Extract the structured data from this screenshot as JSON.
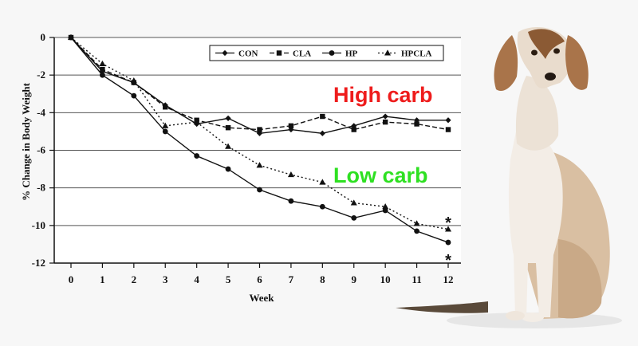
{
  "chart_data": {
    "type": "line",
    "title": "",
    "xlabel": "Week",
    "ylabel": "% Change in Body Weight",
    "x": [
      0,
      1,
      2,
      3,
      4,
      5,
      6,
      7,
      8,
      9,
      10,
      11,
      12
    ],
    "xlim": [
      0,
      12
    ],
    "ylim": [
      -12,
      0
    ],
    "yticks": [
      0,
      -2,
      -4,
      -6,
      -8,
      -10,
      -12
    ],
    "grid": "horizontal",
    "legend_position": "top-right",
    "series": [
      {
        "name": "CON",
        "marker": "diamond",
        "line": "solid",
        "values": [
          0,
          -1.8,
          -2.4,
          -3.6,
          -4.6,
          -4.3,
          -5.1,
          -4.9,
          -5.1,
          -4.7,
          -4.2,
          -4.4,
          -4.4
        ]
      },
      {
        "name": "CLA",
        "marker": "square",
        "line": "dashed",
        "values": [
          0,
          -1.7,
          -2.4,
          -3.7,
          -4.4,
          -4.8,
          -4.9,
          -4.7,
          -4.2,
          -4.9,
          -4.5,
          -4.6,
          -4.9
        ]
      },
      {
        "name": "HP",
        "marker": "circle",
        "line": "solid",
        "values": [
          0,
          -2.0,
          -3.1,
          -5.0,
          -6.3,
          -7.0,
          -8.1,
          -8.7,
          -9.0,
          -9.6,
          -9.2,
          -10.3,
          -10.9
        ]
      },
      {
        "name": "HPCLA",
        "marker": "triangle",
        "line": "dotted",
        "values": [
          0,
          -1.4,
          -2.3,
          -4.7,
          -4.5,
          -5.8,
          -6.8,
          -7.3,
          -7.7,
          -8.8,
          -9.0,
          -9.9,
          -10.2
        ]
      }
    ],
    "annotations": [
      {
        "text": "High carb",
        "color": "#ee1c1c"
      },
      {
        "text": "Low carb",
        "color": "#2ee022"
      },
      {
        "text": "*",
        "x": 12,
        "y": -10.2
      },
      {
        "text": "*",
        "x": 12,
        "y": -10.9
      }
    ]
  },
  "illustration": {
    "icon": "saluki-dog-photo"
  }
}
